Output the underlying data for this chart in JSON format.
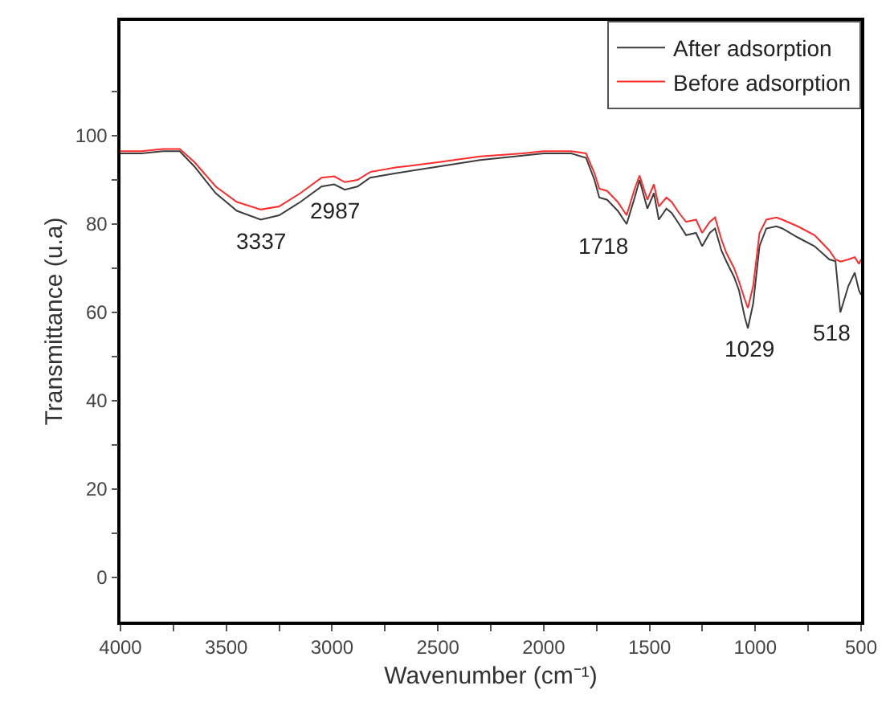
{
  "chart_data": {
    "type": "line",
    "xlabel": "Wavenumber (cm⁻¹)",
    "ylabel": "Transmittance (u.a)",
    "xlim": [
      4000,
      500
    ],
    "ylim": [
      -10,
      126
    ],
    "xticks": [
      4000,
      {
        "value": 3750,
        "label": null
      },
      3500,
      {
        "value": 3250,
        "label": null
      },
      3000,
      {
        "value": 2750,
        "label": null
      },
      2500,
      {
        "value": 2250,
        "label": null
      },
      2000,
      {
        "value": 1750,
        "label": null
      },
      1500,
      {
        "value": 1250,
        "label": null
      },
      1000,
      {
        "value": 750,
        "label": null
      },
      500
    ],
    "yticks": [
      0,
      {
        "value": 10,
        "label": null
      },
      20,
      {
        "value": 30,
        "label": null
      },
      40,
      {
        "value": 50,
        "label": null
      },
      60,
      {
        "value": 70,
        "label": null
      },
      80,
      {
        "value": 90,
        "label": null
      },
      100,
      {
        "value": 110,
        "label": null
      }
    ],
    "grid": false,
    "legend": "top right",
    "line_style": "solid",
    "marker": "none",
    "x": [
      4000,
      3900,
      3800,
      3720,
      3650,
      3550,
      3450,
      3337,
      3250,
      3150,
      3050,
      2990,
      2940,
      2880,
      2820,
      2700,
      2500,
      2300,
      2100,
      2000,
      1870,
      1800,
      1760,
      1737,
      1700,
      1650,
      1608,
      1570,
      1547,
      1510,
      1479,
      1456,
      1420,
      1395,
      1360,
      1327,
      1280,
      1251,
      1215,
      1190,
      1160,
      1137,
      1100,
      1077,
      1050,
      1035,
      1010,
      980,
      948,
      900,
      872,
      800,
      720,
      650,
      621,
      598,
      560,
      530,
      510,
      500
    ],
    "series": [
      {
        "name": "After adsorption",
        "color": "#3c3c3c",
        "values": [
          96,
          96,
          96.5,
          96.5,
          93,
          87,
          83,
          81,
          82,
          85,
          88.5,
          89,
          87.8,
          88.5,
          90.5,
          91.5,
          93,
          94.5,
          95.5,
          96,
          96,
          95,
          90,
          86,
          85.5,
          83,
          80,
          86,
          90,
          83.5,
          87,
          81,
          83.5,
          82.5,
          80,
          77.5,
          78,
          75,
          78,
          79,
          74,
          71.6,
          68,
          65,
          59,
          56.4,
          62,
          75,
          79,
          79.5,
          79,
          77,
          75,
          72,
          71.6,
          60,
          66,
          69,
          65,
          64
        ]
      },
      {
        "name": "Before adsorption",
        "color": "#ff2a2a",
        "values": [
          96.5,
          96.5,
          97,
          97,
          94,
          88.5,
          85,
          83.3,
          84,
          87,
          90.5,
          90.8,
          89.5,
          90,
          91.8,
          92.8,
          94,
          95.3,
          96,
          96.5,
          96.5,
          96,
          91.5,
          88,
          87.5,
          85,
          82,
          88,
          91,
          85.5,
          89,
          84,
          86,
          85,
          82.5,
          80.5,
          81,
          78,
          80.5,
          81.5,
          76.5,
          73.5,
          70,
          67,
          63,
          61,
          66,
          78,
          81,
          81.5,
          81,
          79.5,
          77.5,
          74,
          72,
          71.5,
          72,
          72.5,
          71,
          72
        ]
      }
    ],
    "annotations": [
      {
        "text": "3337",
        "x": 3337,
        "y": 81
      },
      {
        "text": "2987",
        "x": 2987,
        "y": 89
      },
      {
        "text": "1718",
        "x": 1718,
        "y": 86
      },
      {
        "text": "1029",
        "x": 1029,
        "y": 56.4
      },
      {
        "text": "518",
        "x": 518,
        "y": 66.6
      }
    ]
  }
}
